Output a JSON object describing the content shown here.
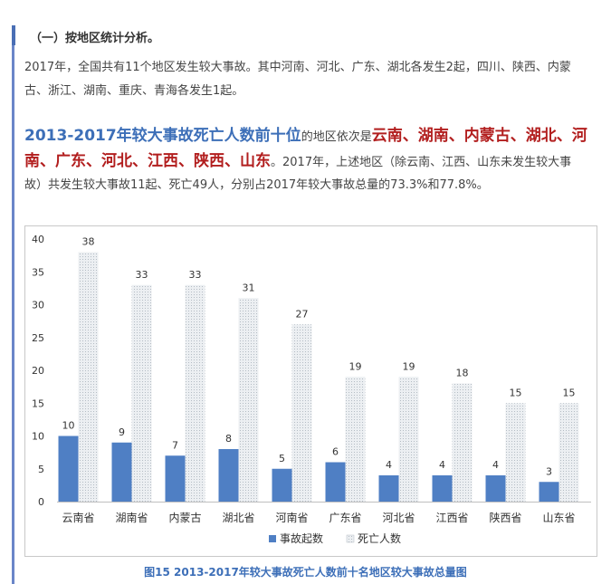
{
  "section": {
    "heading": "（一）按地区统计分析。"
  },
  "paragraph1": {
    "line1": "2017年，全国共有11个地区发生较大事故。其中河南、河北、广东、湖北各发生2起，四川、陕西、内蒙",
    "line2": "古、浙江、湖南、重庆、青海各发生1起。"
  },
  "paragraph2": {
    "highlight_title": "2013-2017年较大事故死亡人数前十位",
    "connector": "的地区依次是",
    "regions_line1": "云南、湖南、内蒙古、湖北、河",
    "regions_line2": "南、广东、河北、江西、陕西、山东",
    "rest_line2": "。2017年，上述地区（除云南、江西、山东未发生较大事",
    "line3": "故）共发生较大事故11起、死亡49人，分别占2017年较大事故总量的73.3%和77.8%。"
  },
  "chart_data": {
    "type": "bar",
    "categories": [
      "云南省",
      "湖南省",
      "内蒙古",
      "湖北省",
      "河南省",
      "广东省",
      "河北省",
      "江西省",
      "陕西省",
      "山东省"
    ],
    "series": [
      {
        "name": "事故起数",
        "values": [
          10,
          9,
          7,
          8,
          5,
          6,
          4,
          4,
          4,
          3
        ],
        "color": "#4f7fc4"
      },
      {
        "name": "死亡人数",
        "values": [
          38,
          33,
          33,
          31,
          27,
          19,
          19,
          18,
          15,
          15
        ],
        "color": "#d9d9d9"
      }
    ],
    "ylim": [
      0,
      40
    ],
    "yticks": [
      0,
      5,
      10,
      15,
      20,
      25,
      30,
      35,
      40
    ],
    "grid": false,
    "legend_position": "bottom-center",
    "xlabel": "",
    "ylabel": ""
  },
  "caption": "图15  2013-2017年较大事故死亡人数前十名地区较大事故总量图"
}
